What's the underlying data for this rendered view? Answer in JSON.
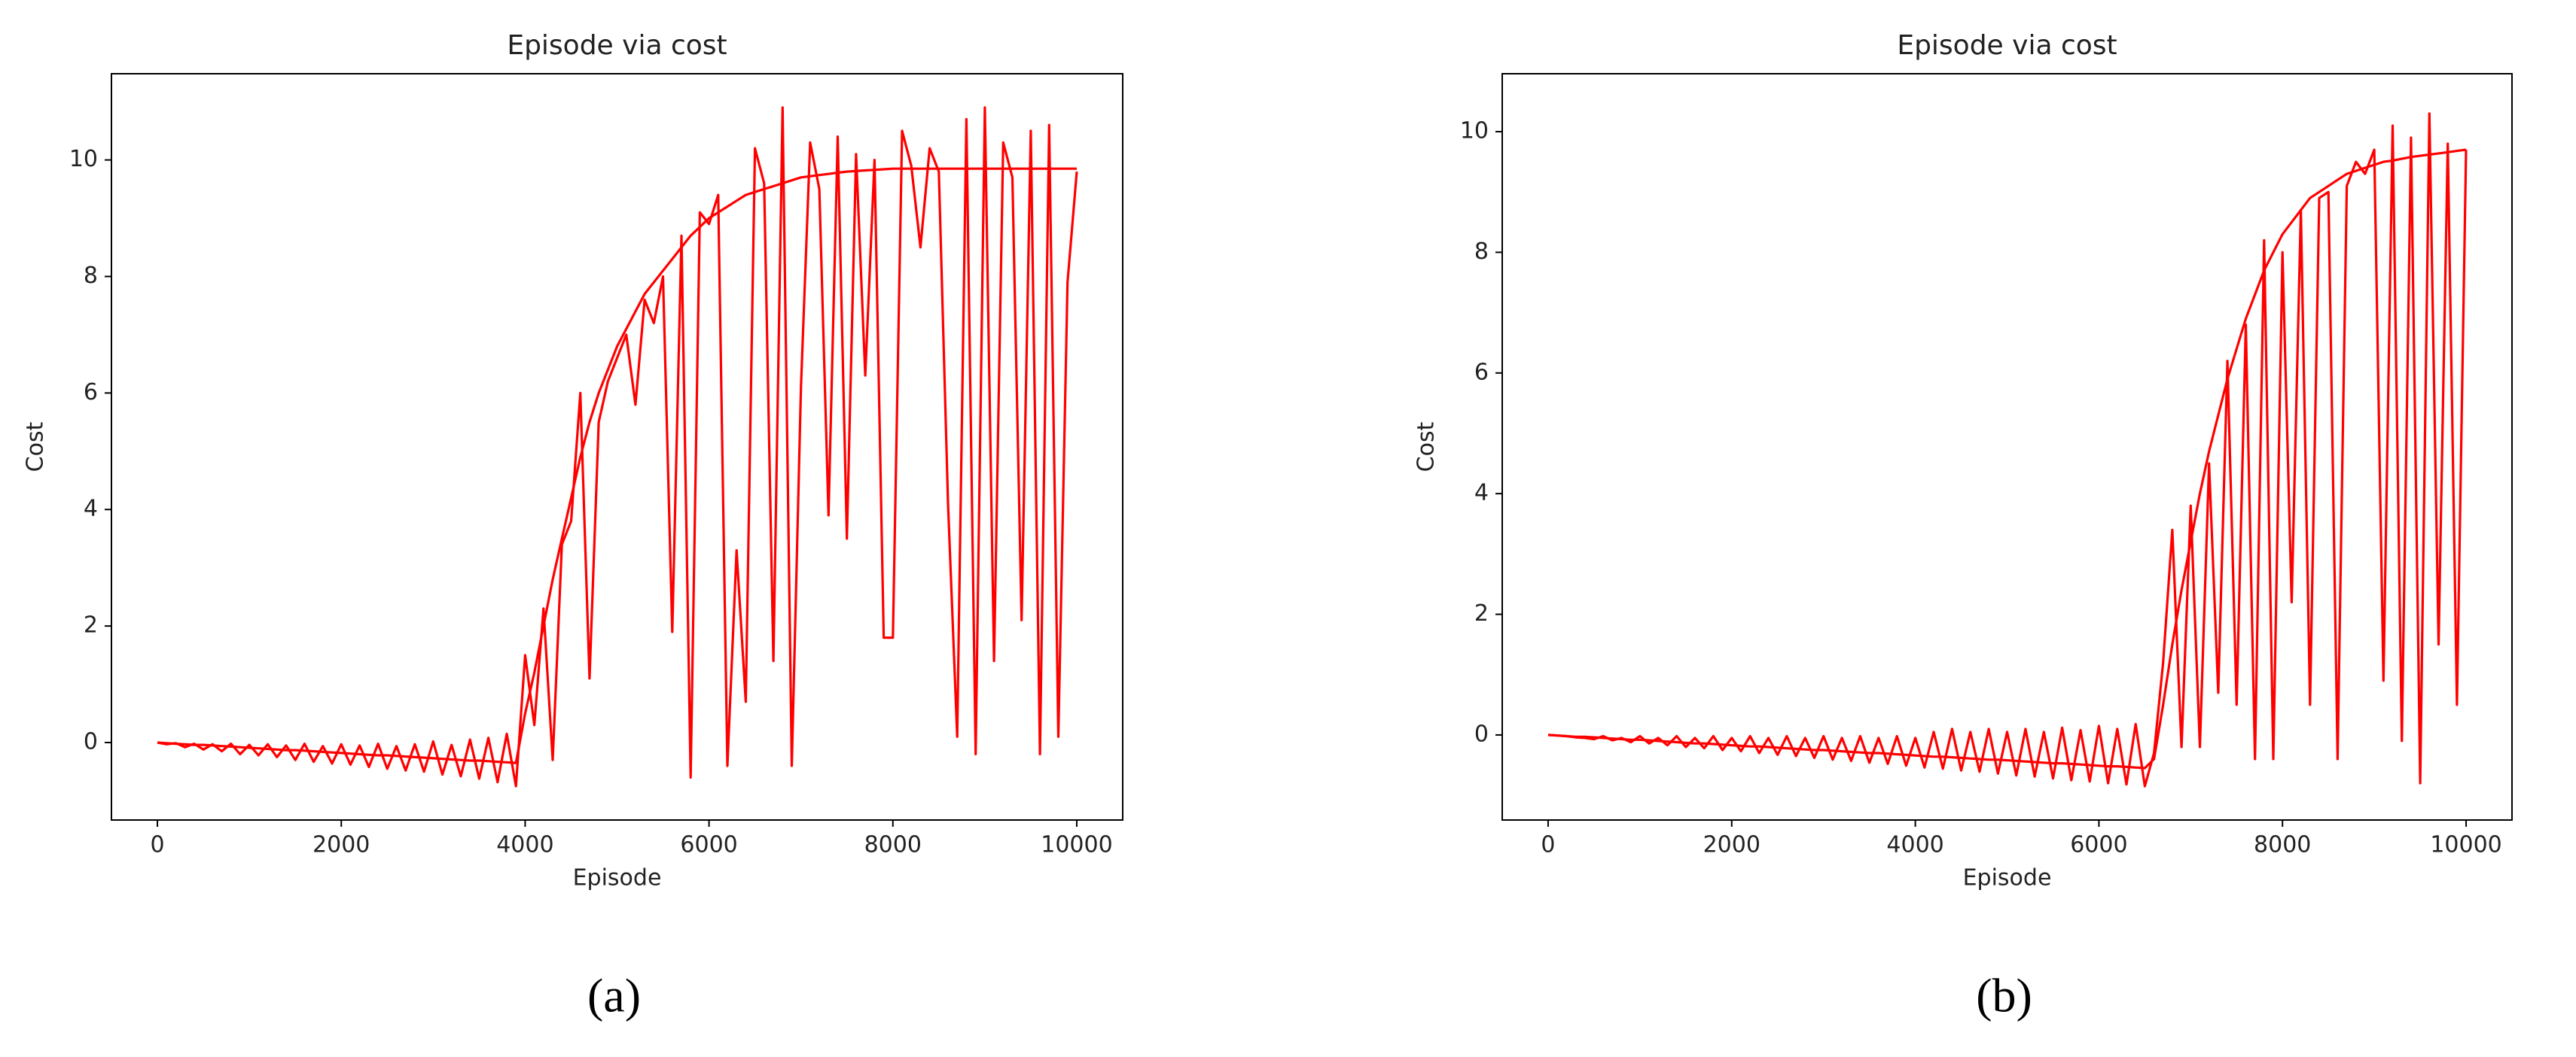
{
  "chart_data": [
    {
      "type": "line",
      "title": "Episode via cost",
      "xlabel": "Episode",
      "ylabel": "Cost",
      "caption": "(a)",
      "xlim": [
        -500,
        10500
      ],
      "ylim": [
        -1.33,
        11.48
      ],
      "xticks": [
        0,
        2000,
        4000,
        6000,
        8000,
        10000
      ],
      "yticks": [
        0,
        2,
        4,
        6,
        8,
        10
      ],
      "grid": false,
      "x": [
        0,
        100,
        200,
        300,
        400,
        500,
        600,
        700,
        800,
        900,
        1000,
        1100,
        1200,
        1300,
        1400,
        1500,
        1600,
        1700,
        1800,
        1900,
        2000,
        2100,
        2200,
        2300,
        2400,
        2500,
        2600,
        2700,
        2800,
        2900,
        3000,
        3100,
        3200,
        3300,
        3400,
        3500,
        3600,
        3700,
        3800,
        3900,
        4000,
        4100,
        4200,
        4300,
        4400,
        4500,
        4600,
        4700,
        4800,
        4900,
        5000,
        5100,
        5200,
        5300,
        5400,
        5500,
        5600,
        5700,
        5800,
        5900,
        6000,
        6100,
        6200,
        6300,
        6400,
        6500,
        6600,
        6700,
        6800,
        6900,
        7000,
        7100,
        7200,
        7300,
        7400,
        7500,
        7600,
        7700,
        7800,
        7900,
        8000,
        8100,
        8200,
        8300,
        8400,
        8500,
        8600,
        8700,
        8800,
        8900,
        9000,
        9100,
        9200,
        9300,
        9400,
        9500,
        9600,
        9700,
        9800,
        9900,
        10000
      ],
      "series": [
        {
          "color": "#ff0000",
          "values": [
            0,
            -0.03,
            -0.01,
            -0.08,
            -0.02,
            -0.12,
            -0.03,
            -0.15,
            -0.02,
            -0.2,
            -0.04,
            -0.22,
            -0.03,
            -0.25,
            -0.05,
            -0.3,
            -0.02,
            -0.33,
            -0.06,
            -0.36,
            -0.03,
            -0.38,
            -0.05,
            -0.42,
            -0.02,
            -0.45,
            -0.06,
            -0.48,
            -0.03,
            -0.5,
            0.02,
            -0.55,
            -0.04,
            -0.58,
            0.05,
            -0.62,
            0.08,
            -0.68,
            0.15,
            -0.75,
            1.5,
            0.3,
            2.3,
            -0.3,
            3.4,
            3.8,
            6.0,
            1.1,
            5.5,
            6.2,
            6.6,
            7.0,
            5.8,
            7.6,
            7.2,
            8.0,
            1.9,
            8.7,
            -0.6,
            9.1,
            8.9,
            9.4,
            -0.4,
            3.3,
            0.7,
            10.2,
            9.6,
            1.4,
            10.9,
            -0.4,
            6.1,
            10.3,
            9.5,
            3.9,
            10.4,
            3.5,
            10.1,
            6.3,
            10.0,
            1.8,
            1.8,
            10.5,
            9.9,
            8.5,
            10.2,
            9.8,
            4.1,
            0.1,
            10.7,
            -0.2,
            10.9,
            1.4,
            10.3,
            9.7,
            2.1,
            10.5,
            -0.2,
            10.6,
            0.1,
            7.9,
            9.8
          ]
        },
        {
          "color": "#ff0000",
          "values": [
            0,
            -0.01,
            -0.02,
            -0.03,
            -0.04,
            -0.04,
            -0.05,
            -0.06,
            -0.07,
            -0.08,
            -0.09,
            -0.1,
            -0.11,
            -0.12,
            -0.13,
            -0.13,
            -0.14,
            -0.15,
            -0.16,
            -0.17,
            -0.18,
            -0.19,
            -0.2,
            -0.21,
            -0.22,
            -0.22,
            -0.23,
            -0.24,
            -0.25,
            -0.26,
            -0.27,
            -0.28,
            -0.29,
            -0.3,
            -0.31,
            -0.31,
            -0.32,
            -0.33,
            -0.34,
            -0.35,
            0.5,
            1.2,
            2.0,
            2.8,
            3.5,
            4.2,
            4.9,
            5.5,
            6.0,
            6.4,
            6.8,
            7.1,
            7.4,
            7.7,
            7.9,
            8.1,
            8.3,
            8.5,
            8.7,
            8.85,
            9.0,
            9.1,
            9.2,
            9.3,
            9.4,
            9.45,
            9.5,
            9.55,
            9.6,
            9.65,
            9.7,
            9.72,
            9.74,
            9.76,
            9.78,
            9.8,
            9.81,
            9.82,
            9.83,
            9.84,
            9.85,
            9.85,
            9.85,
            9.85,
            9.85,
            9.85,
            9.85,
            9.85,
            9.85,
            9.85,
            9.85,
            9.85,
            9.85,
            9.85,
            9.85,
            9.85,
            9.85,
            9.85,
            9.85,
            9.85,
            9.85
          ]
        }
      ]
    },
    {
      "type": "line",
      "title": "Episode via cost",
      "xlabel": "Episode",
      "ylabel": "Cost",
      "caption": "(b)",
      "xlim": [
        -500,
        10500
      ],
      "ylim": [
        -1.41,
        10.96
      ],
      "xticks": [
        0,
        2000,
        4000,
        6000,
        8000,
        10000
      ],
      "yticks": [
        0,
        2,
        4,
        6,
        8,
        10
      ],
      "grid": false,
      "x": [
        0,
        100,
        200,
        300,
        400,
        500,
        600,
        700,
        800,
        900,
        1000,
        1100,
        1200,
        1300,
        1400,
        1500,
        1600,
        1700,
        1800,
        1900,
        2000,
        2100,
        2200,
        2300,
        2400,
        2500,
        2600,
        2700,
        2800,
        2900,
        3000,
        3100,
        3200,
        3300,
        3400,
        3500,
        3600,
        3700,
        3800,
        3900,
        4000,
        4100,
        4200,
        4300,
        4400,
        4500,
        4600,
        4700,
        4800,
        4900,
        5000,
        5100,
        5200,
        5300,
        5400,
        5500,
        5600,
        5700,
        5800,
        5900,
        6000,
        6100,
        6200,
        6300,
        6400,
        6500,
        6600,
        6700,
        6800,
        6900,
        7000,
        7100,
        7200,
        7300,
        7400,
        7500,
        7600,
        7700,
        7800,
        7900,
        8000,
        8100,
        8200,
        8300,
        8400,
        8500,
        8600,
        8700,
        8800,
        8900,
        9000,
        9100,
        9200,
        9300,
        9400,
        9500,
        9600,
        9700,
        9800,
        9900,
        10000
      ],
      "series": [
        {
          "color": "#ff0000",
          "values": [
            0,
            -0.01,
            -0.02,
            -0.04,
            -0.05,
            -0.07,
            -0.02,
            -0.09,
            -0.05,
            -0.12,
            -0.02,
            -0.14,
            -0.05,
            -0.17,
            -0.02,
            -0.2,
            -0.05,
            -0.22,
            -0.02,
            -0.25,
            -0.05,
            -0.27,
            -0.02,
            -0.3,
            -0.05,
            -0.33,
            -0.02,
            -0.35,
            -0.05,
            -0.38,
            -0.02,
            -0.41,
            -0.05,
            -0.43,
            -0.02,
            -0.46,
            -0.05,
            -0.48,
            -0.02,
            -0.51,
            -0.05,
            -0.54,
            0.05,
            -0.56,
            0.1,
            -0.59,
            0.05,
            -0.61,
            0.1,
            -0.64,
            0.05,
            -0.67,
            0.1,
            -0.69,
            0.05,
            -0.72,
            0.12,
            -0.75,
            0.08,
            -0.77,
            0.15,
            -0.8,
            0.1,
            -0.82,
            0.18,
            -0.85,
            -0.3,
            1.2,
            3.4,
            -0.2,
            3.8,
            -0.2,
            4.5,
            0.7,
            6.2,
            0.5,
            6.8,
            -0.4,
            8.2,
            -0.4,
            8.0,
            2.2,
            8.7,
            0.5,
            8.9,
            9.0,
            -0.4,
            9.1,
            9.5,
            9.3,
            9.7,
            0.9,
            10.1,
            -0.1,
            9.9,
            -0.8,
            10.3,
            1.5,
            9.8,
            0.5,
            9.7
          ]
        },
        {
          "color": "#ff0000",
          "values": [
            0,
            -0.01,
            -0.02,
            -0.03,
            -0.03,
            -0.04,
            -0.05,
            -0.06,
            -0.07,
            -0.08,
            -0.08,
            -0.09,
            -0.1,
            -0.11,
            -0.12,
            -0.13,
            -0.14,
            -0.14,
            -0.15,
            -0.16,
            -0.17,
            -0.18,
            -0.19,
            -0.19,
            -0.2,
            -0.21,
            -0.22,
            -0.23,
            -0.24,
            -0.25,
            -0.25,
            -0.26,
            -0.27,
            -0.28,
            -0.29,
            -0.3,
            -0.3,
            -0.31,
            -0.32,
            -0.33,
            -0.34,
            -0.35,
            -0.36,
            -0.36,
            -0.37,
            -0.38,
            -0.39,
            -0.4,
            -0.41,
            -0.41,
            -0.42,
            -0.43,
            -0.44,
            -0.45,
            -0.46,
            -0.47,
            -0.47,
            -0.48,
            -0.49,
            -0.5,
            -0.51,
            -0.52,
            -0.52,
            -0.53,
            -0.54,
            -0.55,
            -0.4,
            0.5,
            1.5,
            2.4,
            3.2,
            4.0,
            4.7,
            5.3,
            5.9,
            6.4,
            6.9,
            7.3,
            7.7,
            8.0,
            8.3,
            8.5,
            8.7,
            8.9,
            9.0,
            9.1,
            9.2,
            9.3,
            9.35,
            9.4,
            9.45,
            9.5,
            9.52,
            9.55,
            9.58,
            9.6,
            9.62,
            9.64,
            9.66,
            9.68,
            9.7
          ]
        }
      ]
    }
  ]
}
